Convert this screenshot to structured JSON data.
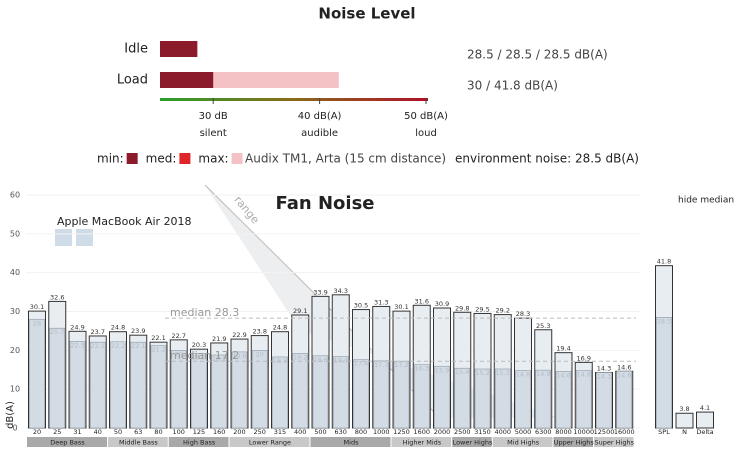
{
  "chart_data": [
    {
      "type": "range",
      "title": "Noise Level",
      "categories": [
        "Idle",
        "Load"
      ],
      "series": [
        {
          "name": "min:",
          "color": "#8b1a2b",
          "values": [
            28.5,
            30
          ]
        },
        {
          "name": "med:",
          "color": "#e0252a",
          "values": [
            28.5,
            null
          ]
        },
        {
          "name": "max:",
          "color": "#f4c2c4",
          "values": [
            28.5,
            41.8
          ]
        }
      ],
      "value_labels": [
        "28.5 / 28.5 / 28.5 dB(A)",
        "30 / 41.8 dB(A)"
      ],
      "xlim": [
        25,
        50
      ],
      "xticks": [
        {
          "value": 30,
          "label": "30 dB"
        },
        {
          "value": 40,
          "label": "40 dB(A)"
        },
        {
          "value": 50,
          "label": "50 dB(A)"
        }
      ],
      "tick_notes": [
        "silent",
        "audible",
        "loud"
      ],
      "notes": [
        "Audix TM1, Arta (15 cm distance)",
        "environment noise: 28.5 dB(A)"
      ]
    },
    {
      "type": "bar",
      "title": "Fan Noise",
      "ylabel": "dB(A)",
      "categories": [
        "20",
        "25",
        "31",
        "40",
        "50",
        "63",
        "80",
        "100",
        "125",
        "160",
        "200",
        "250",
        "315",
        "400",
        "500",
        "630",
        "800",
        "1000",
        "1250",
        "1600",
        "2000",
        "2500",
        "3150",
        "4000",
        "5000",
        "6300",
        "8000",
        "10000",
        "12500",
        "16000"
      ],
      "series": [
        {
          "color": "#e8edf2",
          "values": [
            30.1,
            32.6,
            24.9,
            23.7,
            24.8,
            23.9,
            22.1,
            22.7,
            20.3,
            21.9,
            22.9,
            23.8,
            24.8,
            29.1,
            33.9,
            34.3,
            30.5,
            31.3,
            30.1,
            31.6,
            30.9,
            29.8,
            29.5,
            29.2,
            28.3,
            25.3,
            19.4,
            16.9,
            14.3,
            14.6
          ]
        },
        {
          "color": "#d3dbe4",
          "values": [
            28,
            25.7,
            22.3,
            22.1,
            22.2,
            22.1,
            21.2,
            20,
            19.2,
            18.8,
            19.6,
            20,
            18.3,
            19.2,
            18.6,
            18.4,
            17.6,
            17.3,
            17.2,
            16.3,
            15.9,
            15.4,
            15.2,
            15.2,
            14.8,
            14.9,
            14.6,
            14.8,
            14.3,
            14.6
          ]
        }
      ],
      "ylim": [
        0,
        60
      ],
      "yticks": [
        0,
        10,
        20,
        30,
        40,
        50,
        60
      ],
      "medians": [
        {
          "value": 28.3,
          "label": "median 28.3"
        },
        {
          "value": 17.2,
          "label": "median 17.2"
        }
      ],
      "bands": [
        "Deep Bass",
        "Middle Bass",
        "High Bass",
        "Lower Range",
        "Mids",
        "Higher Mids",
        "Lower Highs",
        "Mid Highs",
        "Upper Highs",
        "Super Highs"
      ],
      "annotations": [
        "range",
        "Apple MacBook Air 2018",
        "hide median"
      ]
    },
    {
      "type": "bar",
      "categories": [
        "SPL",
        "N",
        "Delta"
      ],
      "series": [
        {
          "color": "#e8edf2",
          "values": [
            41.8,
            3.8,
            4.1
          ]
        },
        {
          "color": "#d3dbe4",
          "values": [
            28.5,
            null,
            null
          ]
        }
      ],
      "ylim": [
        0,
        60
      ]
    }
  ]
}
